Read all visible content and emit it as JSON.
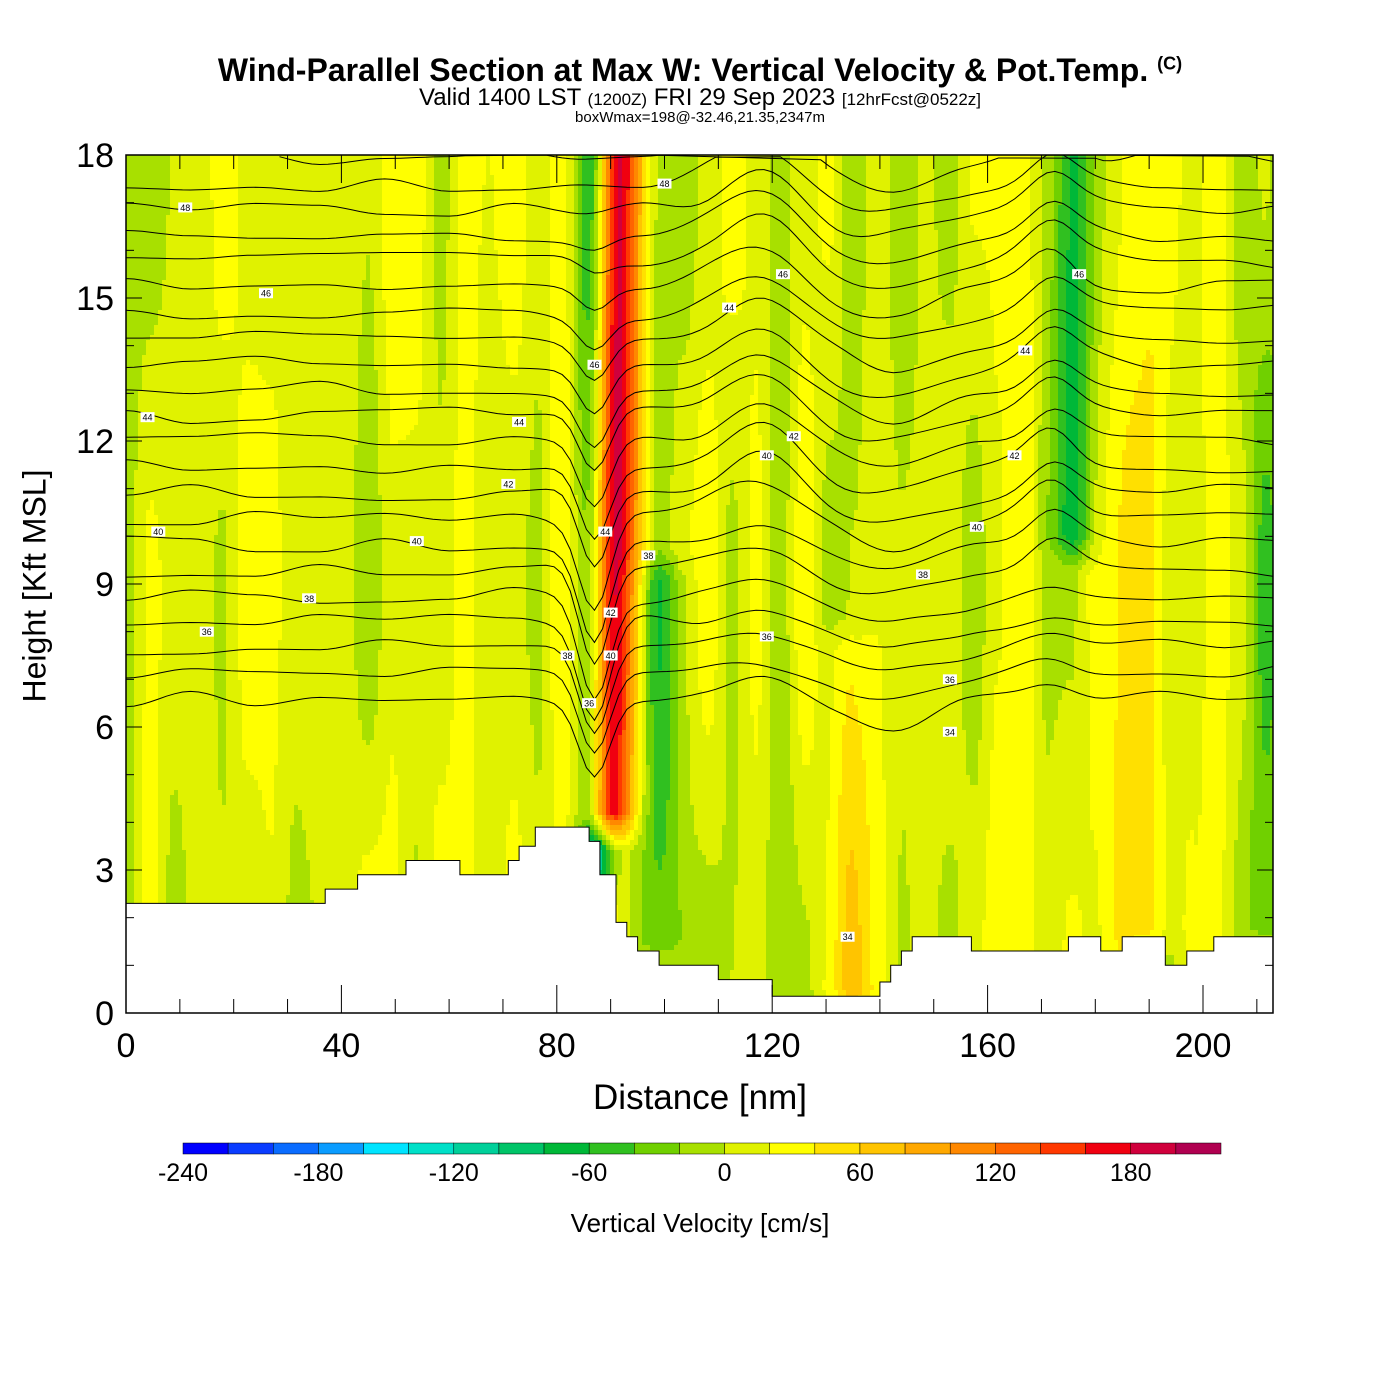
{
  "title": {
    "main": "Wind-Parallel Section at Max W: Vertical Velocity & Pot.Temp.",
    "copyright": "(C)",
    "valid": "Valid 1400 LST",
    "utc": "(1200Z)",
    "date": "FRI 29 Sep 2023",
    "forecast": "[12hrFcst@0522z]",
    "box": "boxWmax=198@-32.46,21.35,2347m"
  },
  "chart_data": {
    "type": "heatmap",
    "xlabel": "Distance [nm]",
    "ylabel": "Height [Kft MSL]",
    "xlim": [
      0,
      213
    ],
    "ylim": [
      0,
      18
    ],
    "xticks": [
      0,
      40,
      80,
      120,
      160,
      200
    ],
    "yticks": [
      0,
      3,
      6,
      9,
      12,
      15,
      18
    ],
    "colorbar": {
      "label": "Vertical Velocity [cm/s]",
      "ticks": [
        -240,
        -180,
        -120,
        -60,
        0,
        60,
        120,
        180
      ],
      "range": [
        -240,
        220
      ],
      "bounds": [
        -240,
        -220,
        -200,
        -180,
        -160,
        -140,
        -120,
        -100,
        -80,
        -60,
        -40,
        -20,
        0,
        20,
        40,
        60,
        80,
        100,
        120,
        140,
        160,
        180,
        200,
        220
      ],
      "colors": [
        "#0000ff",
        "#0a3cff",
        "#0a6cff",
        "#0a9cff",
        "#00e4ff",
        "#00e0c8",
        "#00d09a",
        "#00c468",
        "#00b838",
        "#30c020",
        "#70d000",
        "#a8e000",
        "#e0f200",
        "#ffff00",
        "#ffe000",
        "#ffc400",
        "#ffa800",
        "#ff8800",
        "#ff6400",
        "#ff3800",
        "#f00010",
        "#d0003c",
        "#b00050"
      ]
    },
    "terrain": [
      [
        0,
        2.3
      ],
      [
        37,
        2.3
      ],
      [
        37,
        2.6
      ],
      [
        43,
        2.6
      ],
      [
        43,
        2.9
      ],
      [
        52,
        2.9
      ],
      [
        52,
        3.2
      ],
      [
        62,
        3.2
      ],
      [
        62,
        2.9
      ],
      [
        71,
        2.9
      ],
      [
        71,
        3.2
      ],
      [
        73,
        3.2
      ],
      [
        73,
        3.5
      ],
      [
        76,
        3.5
      ],
      [
        76,
        3.9
      ],
      [
        86,
        3.9
      ],
      [
        86,
        3.6
      ],
      [
        88,
        3.6
      ],
      [
        88,
        2.9
      ],
      [
        91,
        2.9
      ],
      [
        91,
        1.9
      ],
      [
        93,
        1.9
      ],
      [
        93,
        1.6
      ],
      [
        95,
        1.6
      ],
      [
        95,
        1.3
      ],
      [
        99,
        1.3
      ],
      [
        99,
        1.0
      ],
      [
        110,
        1.0
      ],
      [
        110,
        0.7
      ],
      [
        120,
        0.7
      ],
      [
        120,
        0.35
      ],
      [
        140,
        0.35
      ],
      [
        140,
        0.65
      ],
      [
        142,
        0.65
      ],
      [
        142,
        1.0
      ],
      [
        144,
        1.0
      ],
      [
        144,
        1.3
      ],
      [
        146,
        1.3
      ],
      [
        146,
        1.6
      ],
      [
        157,
        1.6
      ],
      [
        157,
        1.3
      ],
      [
        175,
        1.3
      ],
      [
        175,
        1.6
      ],
      [
        181,
        1.6
      ],
      [
        181,
        1.3
      ],
      [
        185,
        1.3
      ],
      [
        185,
        1.6
      ],
      [
        193,
        1.6
      ],
      [
        193,
        1.0
      ],
      [
        197,
        1.0
      ],
      [
        197,
        1.3
      ],
      [
        202,
        1.3
      ],
      [
        202,
        1.6
      ],
      [
        213,
        1.6
      ]
    ],
    "vertical_velocity_features": [
      {
        "x": 90,
        "y_bottom": 4.2,
        "y_top": 18,
        "width": 4.5,
        "peak": 198,
        "kind": "updraft"
      },
      {
        "x": 87,
        "y_bottom": 3.0,
        "y_top": 18,
        "width": 3.5,
        "peak": -130,
        "kind": "downdraft"
      },
      {
        "x": 99,
        "y_bottom": 1.5,
        "y_top": 9,
        "width": 5,
        "peak": -50,
        "kind": "downdraft"
      },
      {
        "x": 134,
        "y_bottom": 0.5,
        "y_top": 7.5,
        "width": 5,
        "peak": 35,
        "kind": "updraft"
      },
      {
        "x": 176,
        "y_bottom": 10,
        "y_top": 18,
        "width": 4,
        "peak": -70,
        "kind": "downdraft"
      },
      {
        "x": 190,
        "y_bottom": 1.8,
        "y_top": 18,
        "width": 5,
        "peak": 40,
        "kind": "updraft"
      },
      {
        "x": 212,
        "y_bottom": 1.8,
        "y_top": 18,
        "width": 5,
        "peak": -35,
        "kind": "downdraft"
      }
    ],
    "theta_contour_labels": [
      {
        "value": "48",
        "x": 11,
        "y": 16.9
      },
      {
        "value": "48",
        "x": 100,
        "y": 17.4
      },
      {
        "value": "46",
        "x": 26,
        "y": 15.1
      },
      {
        "value": "46",
        "x": 87,
        "y": 13.6
      },
      {
        "value": "46",
        "x": 122,
        "y": 15.5
      },
      {
        "value": "46",
        "x": 177,
        "y": 15.5
      },
      {
        "value": "44",
        "x": 4,
        "y": 12.5
      },
      {
        "value": "44",
        "x": 73,
        "y": 12.4
      },
      {
        "value": "44",
        "x": 112,
        "y": 14.8
      },
      {
        "value": "44",
        "x": 167,
        "y": 13.9
      },
      {
        "value": "44",
        "x": 89,
        "y": 10.1
      },
      {
        "value": "42",
        "x": 71,
        "y": 11.1
      },
      {
        "value": "42",
        "x": 124,
        "y": 12.1
      },
      {
        "value": "42",
        "x": 165,
        "y": 11.7
      },
      {
        "value": "42",
        "x": 90,
        "y": 8.4
      },
      {
        "value": "40",
        "x": 6,
        "y": 10.1
      },
      {
        "value": "40",
        "x": 54,
        "y": 9.9
      },
      {
        "value": "40",
        "x": 119,
        "y": 11.7
      },
      {
        "value": "40",
        "x": 158,
        "y": 10.2
      },
      {
        "value": "40",
        "x": 90,
        "y": 7.5
      },
      {
        "value": "38",
        "x": 34,
        "y": 8.7
      },
      {
        "value": "38",
        "x": 97,
        "y": 9.6
      },
      {
        "value": "38",
        "x": 148,
        "y": 9.2
      },
      {
        "value": "38",
        "x": 82,
        "y": 7.5
      },
      {
        "value": "36",
        "x": 15,
        "y": 8.0
      },
      {
        "value": "36",
        "x": 119,
        "y": 7.9
      },
      {
        "value": "36",
        "x": 153,
        "y": 7.0
      },
      {
        "value": "36",
        "x": 86,
        "y": 6.5
      },
      {
        "value": "34",
        "x": 153,
        "y": 5.9
      },
      {
        "value": "34",
        "x": 134,
        "y": 1.6
      }
    ]
  }
}
